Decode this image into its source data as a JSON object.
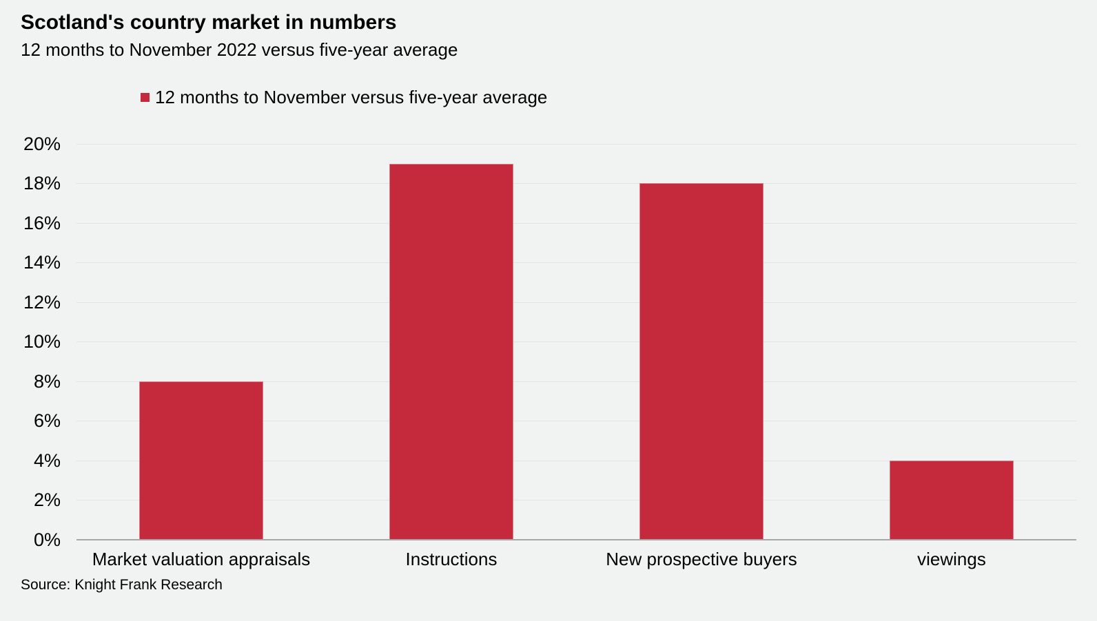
{
  "header": {
    "title": "Scotland's country market in numbers",
    "subtitle": "12 months to November 2022 versus five-year average"
  },
  "legend": {
    "label": "12 months to November versus five-year average"
  },
  "source": "Source: Knight Frank Research",
  "colors": {
    "bar": "#C42A3B",
    "background": "#F0F3F1",
    "gridline": "#E0E4E2",
    "axis": "#A7A7A7",
    "text": "#000000"
  },
  "chart_data": {
    "type": "bar",
    "title": "Scotland's country market in numbers",
    "subtitle": "12 months to November 2022 versus five-year average",
    "series_name": "12 months to November versus five-year average",
    "categories": [
      "Market valuation appraisals",
      "Instructions",
      "New prospective buyers",
      "viewings"
    ],
    "values": [
      8,
      19,
      18,
      4
    ],
    "unit": "%",
    "xlabel": "",
    "ylabel": "",
    "ylim": [
      0,
      20
    ],
    "ytick_step": 2,
    "ytick_labels": [
      "0%",
      "2%",
      "4%",
      "6%",
      "8%",
      "10%",
      "12%",
      "14%",
      "16%",
      "18%",
      "20%"
    ],
    "grid": true,
    "legend_position": "top-left",
    "source": "Source: Knight Frank Research"
  }
}
